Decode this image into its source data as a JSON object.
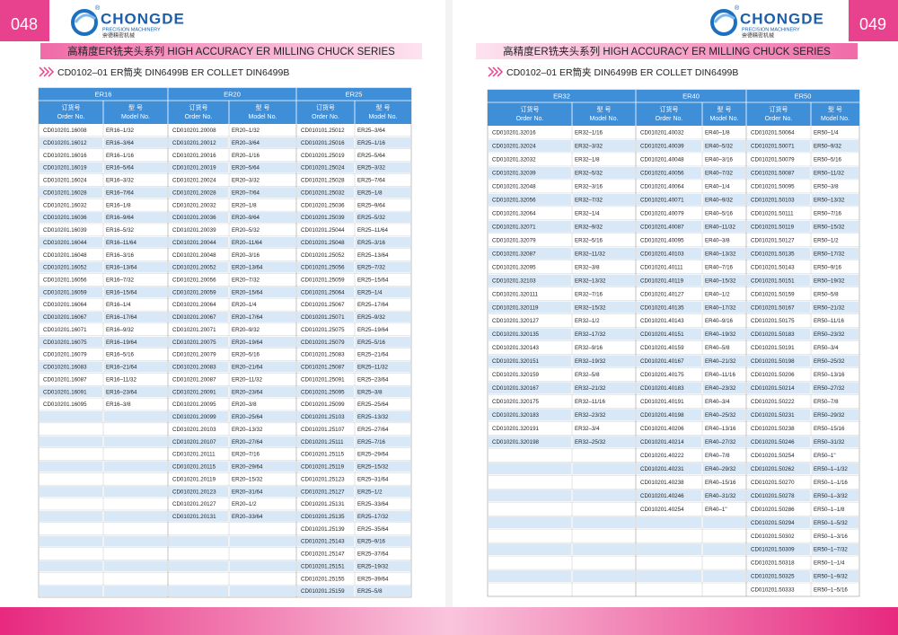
{
  "logo": {
    "brand": "CHONGDE",
    "tagline": "PRECISION MACHINERY",
    "chinese": "崇德精密机械",
    "mark": "®"
  },
  "pages": [
    {
      "page_number": "048",
      "banner": "高精度ER铣夹头系列  HIGH ACCURACY ER MILLING CHUCK SERIES",
      "subtitle": "CD0102–01 ER筒夹  DIN6499B ER COLLET DIN6499B",
      "table": {
        "order_header": [
          "订货号",
          "Order No."
        ],
        "model_header": [
          "型 号",
          "Model No."
        ],
        "groups": [
          {
            "name": "ER16",
            "items": [
              [
                "CD010201.16008",
                "ER16–1/32"
              ],
              [
                "CD010201.16012",
                "ER16–3/64"
              ],
              [
                "CD010201.16016",
                "ER16–1/16"
              ],
              [
                "CD010201.16019",
                "ER16–5/64"
              ],
              [
                "CD010201.16024",
                "ER16–3/32"
              ],
              [
                "CD010201.16028",
                "ER16–7/64"
              ],
              [
                "CD010201.16032",
                "ER16–1/8"
              ],
              [
                "CD010201.16036",
                "ER16–9/64"
              ],
              [
                "CD010201.16039",
                "ER16–5/32"
              ],
              [
                "CD010201.16044",
                "ER16–11/64"
              ],
              [
                "CD010201.16048",
                "ER16–3/16"
              ],
              [
                "CD010201.16052",
                "ER16–13/64"
              ],
              [
                "CD010201.16056",
                "ER16–7/32"
              ],
              [
                "CD010201.16059",
                "ER16–15/64"
              ],
              [
                "CD010201.16064",
                "ER16–1/4"
              ],
              [
                "CD010201.16067",
                "ER16–17/64"
              ],
              [
                "CD010201.16071",
                "ER16–9/32"
              ],
              [
                "CD010201.16075",
                "ER16–19/64"
              ],
              [
                "CD010201.16079",
                "ER16–5/16"
              ],
              [
                "CD010201.16083",
                "ER16–21/64"
              ],
              [
                "CD010201.16087",
                "ER16–11/32"
              ],
              [
                "CD010201.16091",
                "ER16–23/64"
              ],
              [
                "CD010201.16095",
                "ER16–3/8"
              ]
            ]
          },
          {
            "name": "ER20",
            "items": [
              [
                "CD010201.20008",
                "ER20–1/32"
              ],
              [
                "CD010201.20012",
                "ER20–3/64"
              ],
              [
                "CD010201.20016",
                "ER20–1/16"
              ],
              [
                "CD010201.20019",
                "ER20–5/64"
              ],
              [
                "CD010201.20024",
                "ER20–3/32"
              ],
              [
                "CD010201.20028",
                "ER20–7/64"
              ],
              [
                "CD010201.20032",
                "ER20–1/8"
              ],
              [
                "CD010201.20036",
                "ER20–9/64"
              ],
              [
                "CD010201.20039",
                "ER20–5/32"
              ],
              [
                "CD010201.20044",
                "ER20–11/64"
              ],
              [
                "CD010201.20048",
                "ER20–3/16"
              ],
              [
                "CD010201.20052",
                "ER20–13/64"
              ],
              [
                "CD010201.20056",
                "ER20–7/32"
              ],
              [
                "CD010201.20059",
                "ER20–15/64"
              ],
              [
                "CD010201.20064",
                "ER20–1/4"
              ],
              [
                "CD010201.20067",
                "ER20–17/64"
              ],
              [
                "CD010201.20071",
                "ER20–9/32"
              ],
              [
                "CD010201.20075",
                "ER20–19/64"
              ],
              [
                "CD010201.20079",
                "ER20–5/16"
              ],
              [
                "CD010201.20083",
                "ER20–21/64"
              ],
              [
                "CD010201.20087",
                "ER20–11/32"
              ],
              [
                "CD010201.20091",
                "ER20–23/64"
              ],
              [
                "CD010201.20095",
                "ER20–3/8"
              ],
              [
                "CD010201.20099",
                "ER20–25/64"
              ],
              [
                "CD010201.20103",
                "ER20–13/32"
              ],
              [
                "CD010201.20107",
                "ER20–27/64"
              ],
              [
                "CD010201.20111",
                "ER20–7/16"
              ],
              [
                "CD010201.20115",
                "ER20–29/64"
              ],
              [
                "CD010201.20119",
                "ER20–15/32"
              ],
              [
                "CD010201.20123",
                "ER20–31/64"
              ],
              [
                "CD010201.20127",
                "ER20–1/2"
              ],
              [
                "CD010201.20131",
                "ER20–33/64"
              ]
            ]
          },
          {
            "name": "ER25",
            "items": [
              [
                "CD010101.25012",
                "ER25–3/64"
              ],
              [
                "CD010201.25016",
                "ER25–1/16"
              ],
              [
                "CD010201.25019",
                "ER25–5/64"
              ],
              [
                "CD010201.25024",
                "ER25–3/32"
              ],
              [
                "CD010201.25028",
                "ER25–7/64"
              ],
              [
                "CD010201.25032",
                "ER25–1/8"
              ],
              [
                "CD010201.25036",
                "ER25–9/64"
              ],
              [
                "CD010201.25039",
                "ER25–5/32"
              ],
              [
                "CD010201.25044",
                "ER25–11/64"
              ],
              [
                "CD010201.25048",
                "ER25–3/16"
              ],
              [
                "CD010201.25052",
                "ER25–13/64"
              ],
              [
                "CD010201.25056",
                "ER25–7/32"
              ],
              [
                "CD010201.25059",
                "ER25–15/64"
              ],
              [
                "CD010201.25064",
                "ER25–1/4"
              ],
              [
                "CD010201.25067",
                "ER25–17/64"
              ],
              [
                "CD010201.25071",
                "ER25–9/32"
              ],
              [
                "CD010201.25075",
                "ER25–19/64"
              ],
              [
                "CD010201.25079",
                "ER25–5/16"
              ],
              [
                "CD010201.25083",
                "ER25–21/64"
              ],
              [
                "CD010201.25087",
                "ER25–11/32"
              ],
              [
                "CD010201.25091",
                "ER25–23/64"
              ],
              [
                "CD010201.25095",
                "ER25–3/8"
              ],
              [
                "CD010201.25099",
                "ER25–25/64"
              ],
              [
                "CD010201.25103",
                "ER25–13/32"
              ],
              [
                "CD010201.25107",
                "ER25–27/64"
              ],
              [
                "CD010201.25111",
                "ER25–7/16"
              ],
              [
                "CD010201.25115",
                "ER25–29/64"
              ],
              [
                "CD010201.25119",
                "ER25–15/32"
              ],
              [
                "CD010201.25123",
                "ER25–31/64"
              ],
              [
                "CD010201.25127",
                "ER25–1/2"
              ],
              [
                "CD010201.25131",
                "ER25–33/64"
              ],
              [
                "CD010201.25135",
                "ER25–17/32"
              ],
              [
                "CD010201.25139",
                "ER25–35/64"
              ],
              [
                "CD010201.25143",
                "ER25–9/16"
              ],
              [
                "CD010201.25147",
                "ER25–37/64"
              ],
              [
                "CD010201.25151",
                "ER25–19/32"
              ],
              [
                "CD010201.25155",
                "ER25–39/64"
              ],
              [
                "CD010201.25159",
                "ER25–5/8"
              ]
            ]
          }
        ]
      }
    },
    {
      "page_number": "049",
      "banner": "高精度ER铣夹头系列  HIGH ACCURACY ER MILLING CHUCK SERIES",
      "subtitle": "CD0102–01 ER筒夹  DIN6499B ER COLLET DIN6499B",
      "table": {
        "order_header": [
          "订货号",
          "Order No."
        ],
        "model_header": [
          "型 号",
          "Model No."
        ],
        "groups": [
          {
            "name": "ER32",
            "items": [
              [
                "CD010201.32016",
                "ER32–1/16"
              ],
              [
                "CD010201.32024",
                "ER32–3/32"
              ],
              [
                "CD010201.32032",
                "ER32–1/8"
              ],
              [
                "CD010201.32039",
                "ER32–5/32"
              ],
              [
                "CD010201.32048",
                "ER32–3/16"
              ],
              [
                "CD010201.32056",
                "ER32–7/32"
              ],
              [
                "CD010201.32064",
                "ER32–1/4"
              ],
              [
                "CD010201.32071",
                "ER32–9/32"
              ],
              [
                "CD010201.32079",
                "ER32–5/16"
              ],
              [
                "CD010201.32087",
                "ER32–11/32"
              ],
              [
                "CD010201.32095",
                "ER32–3/8"
              ],
              [
                "CD010201.32103",
                "ER32–13/32"
              ],
              [
                "CD010201.320111",
                "ER32–7/16"
              ],
              [
                "CD010201.320119",
                "ER32–15/32"
              ],
              [
                "CD010201.320127",
                "ER32–1/2"
              ],
              [
                "CD010201.320135",
                "ER32–17/32"
              ],
              [
                "CD010201.320143",
                "ER32–9/16"
              ],
              [
                "CD010201.320151",
                "ER32–19/32"
              ],
              [
                "CD010201.320159",
                "ER32–5/8"
              ],
              [
                "CD010201.320167",
                "ER32–21/32"
              ],
              [
                "CD010201.320175",
                "ER32–11/16"
              ],
              [
                "CD010201.320183",
                "ER32–23/32"
              ],
              [
                "CD010201.320191",
                "ER32–3/4"
              ],
              [
                "CD010201.320198",
                "ER32–25/32"
              ]
            ]
          },
          {
            "name": "ER40",
            "items": [
              [
                "CD010201.40032",
                "ER40–1/8"
              ],
              [
                "CD010201.40039",
                "ER40–5/32"
              ],
              [
                "CD010201.40048",
                "ER40–3/16"
              ],
              [
                "CD010201.40056",
                "ER40–7/32"
              ],
              [
                "CD010201.40064",
                "ER40–1/4"
              ],
              [
                "CD010201.40071",
                "ER40–9/32"
              ],
              [
                "CD010201.40079",
                "ER40–5/16"
              ],
              [
                "CD010201.40087",
                "ER40–11/32"
              ],
              [
                "CD010201.40095",
                "ER40–3/8"
              ],
              [
                "CD010201.40103",
                "ER40–13/32"
              ],
              [
                "CD010201.40111",
                "ER40–7/16"
              ],
              [
                "CD010201.40119",
                "ER40–15/32"
              ],
              [
                "CD010201.40127",
                "ER40–1/2"
              ],
              [
                "CD010201.40135",
                "ER40–17/32"
              ],
              [
                "CD010201.40143",
                "ER40–9/16"
              ],
              [
                "CD010201.40151",
                "ER40–19/32"
              ],
              [
                "CD010201.40159",
                "ER40–5/8"
              ],
              [
                "CD010201.40167",
                "ER40–21/32"
              ],
              [
                "CD010201.40175",
                "ER40–11/16"
              ],
              [
                "CD010201.40183",
                "ER40–23/32"
              ],
              [
                "CD010201.40191",
                "ER40–3/4"
              ],
              [
                "CD010201.40198",
                "ER40–25/32"
              ],
              [
                "CD010201.40206",
                "ER40–13/16"
              ],
              [
                "CD010201.40214",
                "ER40–27/32"
              ],
              [
                "CD010201.40222",
                "ER40–7/8"
              ],
              [
                "CD010201.40231",
                "ER40–29/32"
              ],
              [
                "CD010201.40238",
                "ER40–15/16"
              ],
              [
                "CD010201.40246",
                "ER40–31/32"
              ],
              [
                "CD010201.40254",
                "ER40–1\""
              ]
            ]
          },
          {
            "name": "ER50",
            "items": [
              [
                "CD010201.50064",
                "ER50–1/4"
              ],
              [
                "CD010201.50071",
                "ER50–9/32"
              ],
              [
                "CD010201.50079",
                "ER50–5/16"
              ],
              [
                "CD010201.50087",
                "ER50–11/32"
              ],
              [
                "CD010201.50095",
                "ER50–3/8"
              ],
              [
                "CD010201.50103",
                "ER50–13/32"
              ],
              [
                "CD010201.50111",
                "ER50–7/16"
              ],
              [
                "CD010201.50119",
                "ER50–15/32"
              ],
              [
                "CD010201.50127",
                "ER50–1/2"
              ],
              [
                "CD010201.50135",
                "ER50–17/32"
              ],
              [
                "CD010201.50143",
                "ER50–9/16"
              ],
              [
                "CD010201.50151",
                "ER50–19/32"
              ],
              [
                "CD010201.50159",
                "ER50–5/8"
              ],
              [
                "CD010201.50167",
                "ER50–21/32"
              ],
              [
                "CD010201.50175",
                "ER50–11/16"
              ],
              [
                "CD010201.50183",
                "ER50–23/32"
              ],
              [
                "CD010201.50191",
                "ER50–3/4"
              ],
              [
                "CD010201.50198",
                "ER50–25/32"
              ],
              [
                "CD010201.50206",
                "ER50–13/16"
              ],
              [
                "CD010201.50214",
                "ER50–27/32"
              ],
              [
                "CD010201.50222",
                "ER50–7/8"
              ],
              [
                "CD010201.50231",
                "ER50–29/32"
              ],
              [
                "CD010201.50238",
                "ER50–15/16"
              ],
              [
                "CD010201.50246",
                "ER50–31/32"
              ],
              [
                "CD010201.50254",
                "ER50–1\""
              ],
              [
                "CD010201.50262",
                "ER50–1–1/32"
              ],
              [
                "CD010201.50270",
                "ER50–1–1/16"
              ],
              [
                "CD010201.50278",
                "ER50–1–3/32"
              ],
              [
                "CD010201.50286",
                "ER50–1–1/8"
              ],
              [
                "CD010201.50294",
                "ER50–1–5/32"
              ],
              [
                "CD010201.50302",
                "ER50–1–3/16"
              ],
              [
                "CD010201.50309",
                "ER50–1–7/32"
              ],
              [
                "CD010201.50318",
                "ER50–1–1/4"
              ],
              [
                "CD010201.50325",
                "ER50–1–9/32"
              ],
              [
                "CD010201.50333",
                "ER50–1–5/16"
              ]
            ]
          }
        ]
      }
    }
  ]
}
